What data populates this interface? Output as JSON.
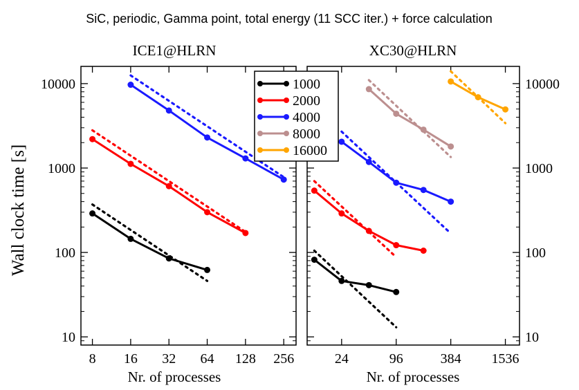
{
  "figure_title": "SiC, periodic, Gamma point, total energy (11 SCC iter.) + force calculation",
  "ylabel": "Wall clock time [s]",
  "colors": {
    "1000": "#000000",
    "2000": "#ff0000",
    "4000": "#1a1aff",
    "8000": "#bc8f8f",
    "16000": "#ffa500"
  },
  "legend": {
    "position": "top-center",
    "entries": [
      "1000",
      "2000",
      "4000",
      "8000",
      "16000"
    ]
  },
  "chart_data": [
    {
      "type": "line",
      "title": "ICE1@HLRN",
      "xlabel": "Nr. of processes",
      "ylabel": "Wall clock time [s]",
      "xscale": "log",
      "yscale": "log",
      "xlim": [
        6.5,
        320
      ],
      "ylim": [
        8,
        16000
      ],
      "xticks": [
        8,
        16,
        32,
        64,
        128,
        256
      ],
      "yticks": [
        10,
        100,
        1000,
        10000
      ],
      "series": [
        {
          "name": "1000",
          "x": [
            8,
            16,
            32,
            64
          ],
          "y": [
            290,
            145,
            85,
            62
          ],
          "ideal": {
            "x": [
              8,
              64
            ],
            "y": [
              370,
              46
            ]
          }
        },
        {
          "name": "2000",
          "x": [
            8,
            16,
            32,
            64,
            128
          ],
          "y": [
            2200,
            1120,
            610,
            300,
            170
          ],
          "ideal": {
            "x": [
              8,
              128
            ],
            "y": [
              2800,
              175
            ]
          }
        },
        {
          "name": "4000",
          "x": [
            16,
            32,
            64,
            128,
            256
          ],
          "y": [
            9700,
            4800,
            2300,
            1300,
            730
          ],
          "ideal": {
            "x": [
              16,
              256
            ],
            "y": [
              12500,
              780
            ]
          }
        }
      ]
    },
    {
      "type": "line",
      "title": "XC30@HLRN",
      "xlabel": "Nr. of processes",
      "xscale": "log",
      "yscale": "log",
      "xlim": [
        10,
        2200
      ],
      "ylim": [
        8,
        16000
      ],
      "xticks": [
        24,
        96,
        384,
        1536
      ],
      "yticks": [
        10,
        100,
        1000,
        10000
      ],
      "series": [
        {
          "name": "1000",
          "x": [
            12,
            24,
            48,
            96
          ],
          "y": [
            82,
            46,
            41,
            34
          ],
          "ideal": {
            "x": [
              12,
              96
            ],
            "y": [
              105,
              13
            ]
          }
        },
        {
          "name": "2000",
          "x": [
            12,
            24,
            48,
            96,
            192
          ],
          "y": [
            540,
            290,
            180,
            122,
            105
          ],
          "ideal": {
            "x": [
              12,
              96
            ],
            "y": [
              700,
              88
            ]
          }
        },
        {
          "name": "4000",
          "x": [
            24,
            48,
            96,
            192,
            384
          ],
          "y": [
            2050,
            1180,
            670,
            550,
            400
          ],
          "ideal": {
            "x": [
              24,
              384
            ],
            "y": [
              2700,
              168
            ]
          }
        },
        {
          "name": "8000",
          "x": [
            48,
            96,
            192,
            384
          ],
          "y": [
            8600,
            4400,
            2850,
            1800
          ],
          "ideal": {
            "x": [
              48,
              384
            ],
            "y": [
              11000,
              1350
            ]
          }
        },
        {
          "name": "16000",
          "x": [
            384,
            768,
            1536
          ],
          "y": [
            10600,
            6900,
            4950
          ],
          "ideal": {
            "x": [
              384,
              1536
            ],
            "y": [
              14000,
              3400
            ]
          }
        }
      ]
    }
  ]
}
